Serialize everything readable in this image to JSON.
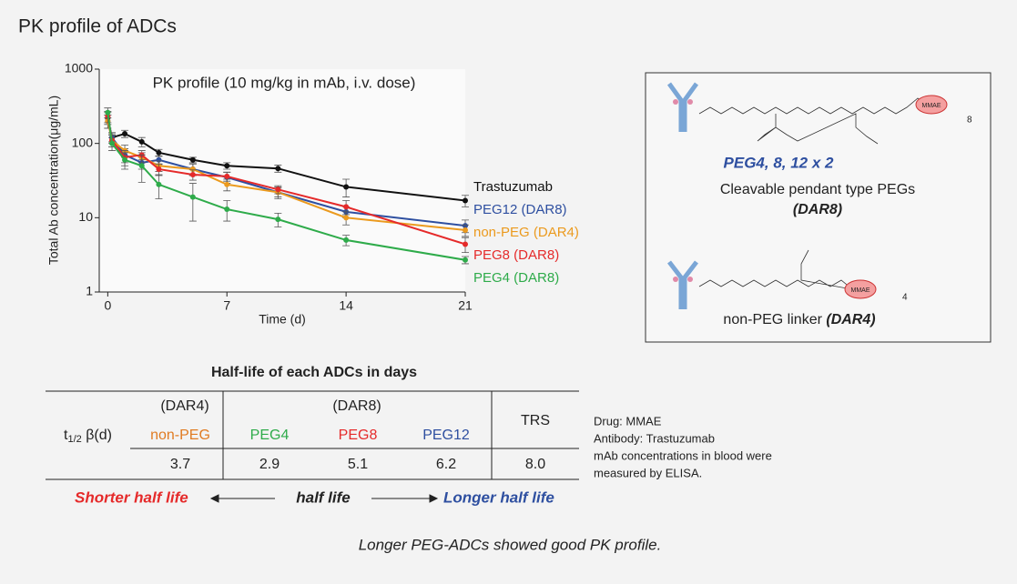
{
  "header": {
    "title": "PK profile of ADCs"
  },
  "chart_data": {
    "type": "line",
    "title": "PK profile (10 mg/kg in mAb, i.v. dose)",
    "x_label": "Time (d)",
    "y_label": "Total Ab concentration(μg/mL)",
    "x": [
      0,
      0.25,
      1,
      2,
      3,
      5,
      7,
      10,
      14,
      21
    ],
    "xlim": [
      -0.5,
      21
    ],
    "xticks": [
      0,
      7,
      14,
      21
    ],
    "ylim": [
      1,
      1000
    ],
    "yticks": [
      1,
      10,
      100,
      1000
    ],
    "y_scale": "log",
    "series": [
      {
        "name": "Trastuzumab",
        "color": "#111111",
        "values": [
          220,
          120,
          135,
          105,
          75,
          60,
          50,
          46,
          26,
          17
        ],
        "errors": [
          40,
          15,
          15,
          15,
          8,
          5,
          5,
          5,
          7,
          3
        ]
      },
      {
        "name": "PEG12 (DAR8)",
        "color": "#2e4fa0",
        "values": [
          200,
          120,
          70,
          55,
          60,
          45,
          35,
          22,
          12,
          7.8
        ],
        "errors": [
          40,
          20,
          15,
          10,
          8,
          8,
          6,
          4,
          2,
          1.5
        ]
      },
      {
        "name": "non-PEG (DAR4)",
        "color": "#eb9a1e",
        "values": [
          200,
          110,
          80,
          65,
          50,
          45,
          28,
          22,
          10,
          6.8
        ],
        "errors": [
          40,
          20,
          15,
          10,
          8,
          8,
          5,
          3,
          2,
          1.2
        ]
      },
      {
        "name": "PEG8 (DAR8)",
        "color": "#e52a2a",
        "values": [
          230,
          110,
          65,
          70,
          45,
          38,
          36,
          24,
          14,
          4.4
        ],
        "errors": [
          40,
          20,
          15,
          10,
          8,
          6,
          5,
          3,
          3,
          1
        ]
      },
      {
        "name": "PEG4 (DAR8)",
        "color": "#2eab4a",
        "values": [
          260,
          100,
          60,
          50,
          28,
          19,
          13,
          9.5,
          5,
          2.7
        ],
        "errors": [
          40,
          20,
          15,
          20,
          10,
          10,
          4,
          2,
          0.8,
          0.3
        ]
      }
    ]
  },
  "diagram": {
    "structure_1": {
      "payload": "MMAE",
      "repeat": "8",
      "title": "PEG4, 8, 12 x 2",
      "caption": "Cleavable pendant type PEGs",
      "dar": "(DAR8)"
    },
    "structure_2": {
      "payload": "MMAE",
      "repeat": "4",
      "caption": "non-PEG linker ",
      "dar": "(DAR4)"
    }
  },
  "table": {
    "title": "Half-life of each ADCs in days",
    "groups": [
      "(DAR4)",
      "(DAR8)",
      "TRS"
    ],
    "row_label": {
      "main": "t",
      "sub": "1/2",
      "rest": " β(d)"
    },
    "columns": [
      "non-PEG",
      "PEG4",
      "PEG8",
      "PEG12"
    ],
    "values": [
      "3.7",
      "2.9",
      "5.1",
      "6.2",
      "8.0"
    ]
  },
  "notes": [
    "Drug: MMAE",
    "Antibody: Trastuzumab",
    "mAb concentrations in blood were",
    "measured by ELISA."
  ],
  "scale": {
    "left": "Shorter half life",
    "middle": "half life",
    "right": "Longer half life"
  },
  "footer": "Longer PEG-ADCs showed good PK profile."
}
